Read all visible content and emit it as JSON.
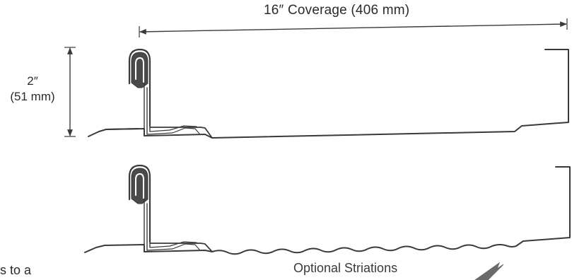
{
  "dimensions": {
    "coverage_label": "16″  Coverage (406 mm)",
    "height_imperial": "2″",
    "height_metric": "(51 mm)"
  },
  "striations_label": "Optional Striations",
  "cut_off_text": "s to a",
  "colors": {
    "line": "#3a3a3a",
    "seam_fill": "#4a4a4a",
    "text": "#2a2a2a",
    "background": "#ffffff"
  }
}
